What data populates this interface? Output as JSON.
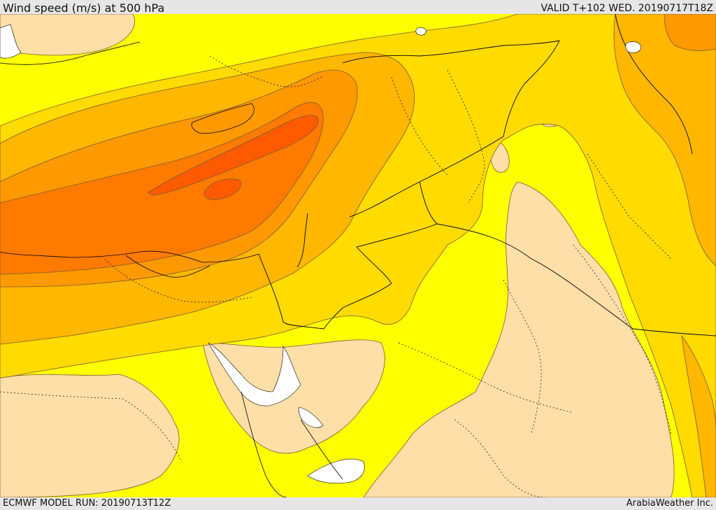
{
  "header": {
    "title": "Wind speed (m/s) at 500 hPa",
    "valid_time": "VALID T+102 WED. 20190717T18Z"
  },
  "footer": {
    "model_run": "ECMWF MODEL RUN: 20190713T12Z",
    "credit": "ArabiaWeather Inc."
  },
  "map": {
    "colors": {
      "land_water": "#ffffff",
      "band_lowest": "#ffdfa8",
      "band_low": "#ffff00",
      "band_mid_low": "#ffdb00",
      "band_mid": "#ffb700",
      "band_mid_high": "#ff9900",
      "band_high": "#ff7b00",
      "band_highest": "#ff5a00",
      "contour_line": "#7a5a3a",
      "border_line": "#000000"
    }
  }
}
